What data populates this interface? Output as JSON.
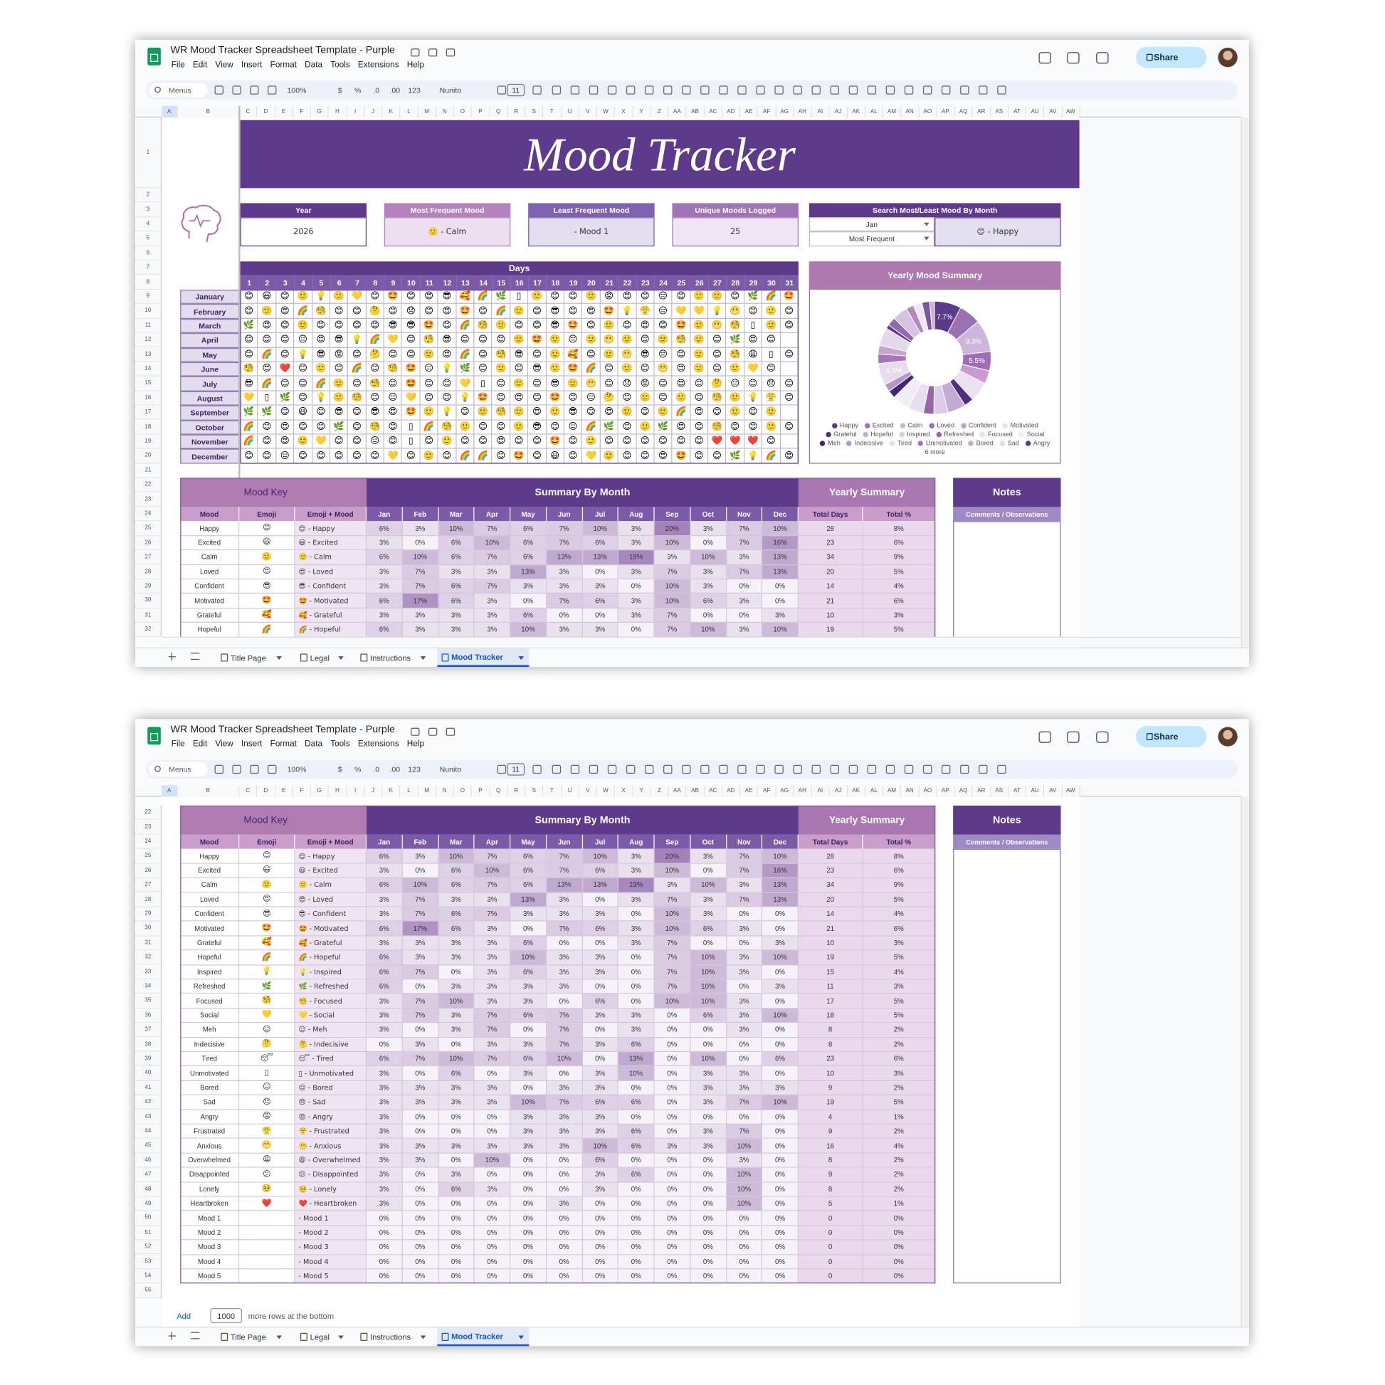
{
  "app": {
    "doc_title": "WR Mood Tracker Spreadsheet Template - Purple",
    "menus": [
      "File",
      "Edit",
      "View",
      "Insert",
      "Format",
      "Data",
      "Tools",
      "Extensions",
      "Help"
    ],
    "toolbar": {
      "search": "Menus",
      "zoom": "100%",
      "currency": "$",
      "percent": "%",
      "dec_less": ".0",
      "dec_more": ".00",
      "format": "123",
      "font": "Nunito",
      "font_size": "11"
    },
    "share": "Share",
    "columns": [
      "A",
      "B",
      "C",
      "D",
      "E",
      "F",
      "G",
      "H",
      "I",
      "J",
      "K",
      "L",
      "M",
      "N",
      "O",
      "P",
      "Q",
      "R",
      "S",
      "T",
      "U",
      "V",
      "W",
      "X",
      "Y",
      "Z",
      "AA",
      "AB",
      "AC",
      "AD",
      "AE",
      "AF",
      "AG",
      "AH",
      "AI",
      "AJ",
      "AK",
      "AL",
      "AM",
      "AN",
      "AO",
      "AP",
      "AQ",
      "AR",
      "AS",
      "AT",
      "AU",
      "AV",
      "AW"
    ],
    "row_numbers": [
      1,
      2,
      3,
      4,
      5,
      6,
      7,
      8,
      9,
      10,
      11,
      12,
      13,
      14,
      15,
      16,
      17,
      18,
      19,
      20,
      21,
      22,
      23,
      24,
      25,
      26,
      27,
      28,
      29,
      30,
      31,
      32,
      33,
      34,
      35,
      36,
      37,
      38,
      39,
      40,
      41,
      42,
      43,
      44,
      45,
      46,
      47,
      48,
      49,
      50,
      51,
      52,
      53,
      54,
      55
    ],
    "tabs": [
      "Title Page",
      "Legal",
      "Instructions",
      "Mood Tracker"
    ],
    "add_rows": {
      "button": "Add",
      "count": "1000",
      "text": "more rows at the bottom"
    }
  },
  "tracker": {
    "title": "Mood Tracker",
    "stats": [
      {
        "label": "Year",
        "value": "2026"
      },
      {
        "label": "Most Frequent Mood",
        "value": "🙂 - Calm"
      },
      {
        "label": "Least Frequent Mood",
        "value": "- Mood 1"
      },
      {
        "label": "Unique Moods Logged",
        "value": "25"
      }
    ],
    "search": {
      "label": "Search Most/Least Mood By Month",
      "month": "Jan",
      "mode": "Most Frequent",
      "result": "😊 - Happy"
    },
    "days_label": "Days",
    "days": [
      1,
      2,
      3,
      4,
      5,
      6,
      7,
      8,
      9,
      10,
      11,
      12,
      13,
      14,
      15,
      16,
      17,
      18,
      19,
      20,
      21,
      22,
      23,
      24,
      25,
      26,
      27,
      28,
      29,
      30,
      31
    ],
    "months": [
      "January",
      "February",
      "March",
      "April",
      "May",
      "June",
      "July",
      "August",
      "September",
      "October",
      "November",
      "December"
    ],
    "grid": [
      [
        "😊",
        "😃",
        "😊",
        "🙂",
        "💡",
        "🙂",
        "💛",
        "😊",
        "🤩",
        "😊",
        "😍",
        "😎",
        "🥰",
        "🌈",
        "🌿",
        "▯",
        "🙂",
        "😊",
        "😊",
        "🙂",
        "😡",
        "😍",
        "😊",
        "😑",
        "😊",
        "🙂",
        "🙂",
        "😊",
        "🌿",
        "🌈",
        "🤩"
      ],
      [
        "😊",
        "🙂",
        "😍",
        "🌈",
        "🧐",
        "😊",
        "😊",
        "🤔",
        "😊",
        "😞",
        "😊",
        "😍",
        "🤩",
        "😊",
        "🌈",
        "🙂",
        "😊",
        "😎",
        "😊",
        "😍",
        "🤩",
        "💡",
        "😤",
        "😑",
        "💛",
        "💛",
        "💡",
        "😬",
        "😊",
        "🙂",
        "😊"
      ],
      [
        "🌿",
        "😍",
        "😊",
        "🙂",
        "😊",
        "😊",
        "😊",
        "😊",
        "😎",
        "😎",
        "🤩",
        "😊",
        "🌈",
        "🧐",
        "🙂",
        "😊",
        "😊",
        "😎",
        "🤩",
        "😊",
        "🙂",
        "😊",
        "😍",
        "😊",
        "🤩",
        "🙂",
        "😬",
        "🧐",
        "▯",
        "🙂",
        "😊"
      ],
      [
        "😊",
        "😊",
        "😊",
        "😐",
        "😍",
        "😎",
        "💡",
        "🌈",
        "💛",
        "😊",
        "🧐",
        "😎",
        "😊",
        "😊",
        "😊",
        "🙂",
        "🤩",
        "🙂",
        "😑",
        "🙂",
        "😬",
        "🙂",
        "😊",
        "🙂",
        "🧐",
        "🙂",
        "😊",
        "🌿",
        "😍",
        "😊",
        null
      ],
      [
        "😊",
        "🌈",
        "😊",
        "💡",
        "😎",
        "😡",
        "😊",
        "🤔",
        "😊",
        "😊",
        "🙂",
        "😍",
        "🌈",
        "😊",
        "🧐",
        "😎",
        "😊",
        "🙂",
        "🥰",
        "😊",
        "🙂",
        "😬",
        "😎",
        "😑",
        "😊",
        "🙂",
        "😊",
        "🧐",
        "😩",
        "▯",
        "😊"
      ],
      [
        "🧐",
        "😍",
        "❤️",
        "😊",
        "🙂",
        "😊",
        "🌈",
        "😊",
        "🧐",
        "🤩",
        "😑",
        "💡",
        "🌿",
        "😊",
        "🙂",
        "😊",
        "😎",
        "🙂",
        "🤩",
        "🌈",
        "😊",
        "🙂",
        "😊",
        "😬",
        "😍",
        "🙂",
        "😊",
        "🙂",
        "💛",
        "😊",
        null
      ],
      [
        "😎",
        "🌈",
        "😊",
        "😊",
        "🌈",
        "🙂",
        "😊",
        "🧐",
        "😊",
        "🤩",
        "😊",
        "😊",
        "💛",
        "▯",
        "😊",
        "🙂",
        "😊",
        "😎",
        "🙂",
        "😬",
        "😊",
        "😞",
        "😡",
        "😊",
        "😍",
        "😊",
        "🤔",
        "😑",
        "😊",
        "😞",
        "😊"
      ],
      [
        "💛",
        "▯",
        "🌿",
        "😊",
        "💡",
        "🙂",
        "🧐",
        "😊",
        "😑",
        "💛",
        "😊",
        "😊",
        "💡",
        "🤩",
        "😊",
        "😍",
        "😊",
        "🤩",
        "😊",
        "😑",
        "🤔",
        "😊",
        "🙂",
        "😊",
        "🙂",
        "😊",
        "🧐",
        "🙂",
        "💡",
        "😤",
        "😊"
      ],
      [
        "🌿",
        "🌿",
        "😊",
        "😃",
        "😊",
        "😎",
        "😊",
        "😎",
        "😍",
        "🤩",
        "🙂",
        "💡",
        "😊",
        "🙂",
        "🧐",
        "🙂",
        "😍",
        "🙂",
        "😎",
        "😊",
        "😍",
        "🙂",
        "😊",
        "🙂",
        "🌈",
        "😍",
        "😊",
        "🙂",
        "😊",
        "🙂",
        null
      ],
      [
        "🌈",
        "😊",
        "😍",
        "😊",
        "😊",
        "🌿",
        "😊",
        "🧐",
        "😊",
        "▯",
        "🌈",
        "🧐",
        "🙂",
        "😊",
        "😊",
        "🙂",
        "😎",
        "😊",
        "😑",
        "🌈",
        "🌿",
        "😊",
        "🙂",
        "🌿",
        "😍",
        "😊",
        "🧐",
        "😊",
        "😊",
        "🙂",
        "😊"
      ],
      [
        "🌈",
        "😊",
        "😍",
        "🙂",
        "💛",
        "😊",
        "😊",
        "😑",
        "😊",
        "▯",
        "😊",
        "🙂",
        "😊",
        "😊",
        "😍",
        "😊",
        "😊",
        "🤩",
        "😊",
        "🙂",
        "😊",
        "😊",
        "😊",
        "😊",
        "😊",
        "😊",
        "❤️",
        "❤️",
        "❤️",
        "😊",
        null
      ],
      [
        "😊",
        "😊",
        "😑",
        "😊",
        "😊",
        "😊",
        "😊",
        "😊",
        "💛",
        "😊",
        "🙂",
        "😊",
        "🌈",
        "🌈",
        "😊",
        "🤩",
        "😊",
        "😃",
        "😊",
        "💛",
        "🙂",
        "😊",
        "😊",
        "😍",
        "🤩",
        "😊",
        "😊",
        "🌿",
        "💡",
        "🌈",
        "😍"
      ]
    ]
  },
  "chart_data": {
    "type": "pie",
    "title": "Yearly Mood Summary",
    "categories": [
      "Happy",
      "Excited",
      "Calm",
      "Loved",
      "Confident",
      "Motivated",
      "Grateful",
      "Hopeful",
      "Inspired",
      "Refreshed",
      "Focused",
      "Social",
      "Meh",
      "Indecisive",
      "Tired",
      "Unmotivated",
      "Bored",
      "Sad",
      "Angry",
      "Frustrated",
      "Anxious",
      "Overwhelmed",
      "Disappointed",
      "Lonely",
      "Heartbroken"
    ],
    "values": [
      7.7,
      6.3,
      9.3,
      5.5,
      3.8,
      5.7,
      2.7,
      5.2,
      4.1,
      3.0,
      4.6,
      4.9,
      2.2,
      2.2,
      6.3,
      2.7,
      2.5,
      5.2,
      1.1,
      2.5,
      4.4,
      2.2,
      2.5,
      2.2,
      1.4
    ],
    "value_labels": [
      "7.7%",
      null,
      "9.3%",
      "5.5%",
      null,
      null,
      null,
      null,
      null,
      null,
      null,
      null,
      null,
      null,
      "6.3%",
      null,
      null,
      null,
      null,
      null,
      null,
      null,
      null,
      null,
      null
    ],
    "colors": [
      "#5b3a8a",
      "#9a72b4",
      "#cdb6dc",
      "#a06cb6",
      "#c89acf",
      "#ebe1f1",
      "#4e2f80",
      "#c4aad6",
      "#ddcce8",
      "#9866a8",
      "#e9def0",
      "#f2ecf6",
      "#432672",
      "#b595cb",
      "#e6dced",
      "#a775ba",
      "#c6a5cf",
      "#e4d8eb",
      "#5a3a8a",
      "#8f6bb0",
      "#d6c2e2",
      "#b089c2",
      "#efe6f3",
      "#7a55a0",
      "#cbb2d9"
    ],
    "legend_more": "6 more"
  },
  "mood_key": {
    "title": "Mood Key",
    "summary_title": "Summary By Month",
    "yearly_title": "Yearly Summary",
    "notes_title": "Notes",
    "notes_sub": "Comments / Observations",
    "headers": [
      "Mood",
      "Emoji",
      "Emoji + Mood",
      "Jan",
      "Feb",
      "Mar",
      "Apr",
      "May",
      "Jun",
      "Jul",
      "Aug",
      "Sep",
      "Oct",
      "Nov",
      "Dec",
      "Total Days",
      "Total %"
    ],
    "rows": [
      [
        "Happy",
        "😊",
        "😊 - Happy",
        "6%",
        "3%",
        "10%",
        "7%",
        "6%",
        "7%",
        "10%",
        "3%",
        "20%",
        "3%",
        "7%",
        "10%",
        28,
        "8%"
      ],
      [
        "Excited",
        "😃",
        "😃 - Excited",
        "3%",
        "0%",
        "6%",
        "10%",
        "6%",
        "7%",
        "6%",
        "3%",
        "10%",
        "0%",
        "7%",
        "16%",
        23,
        "6%"
      ],
      [
        "Calm",
        "🙂",
        "🙂 - Calm",
        "6%",
        "10%",
        "6%",
        "7%",
        "6%",
        "13%",
        "13%",
        "19%",
        "3%",
        "10%",
        "3%",
        "13%",
        34,
        "9%"
      ],
      [
        "Loved",
        "😍",
        "😍 - Loved",
        "3%",
        "7%",
        "3%",
        "3%",
        "13%",
        "3%",
        "0%",
        "3%",
        "7%",
        "3%",
        "7%",
        "13%",
        20,
        "5%"
      ],
      [
        "Confident",
        "😎",
        "😎 - Confident",
        "3%",
        "7%",
        "6%",
        "7%",
        "3%",
        "3%",
        "3%",
        "0%",
        "10%",
        "3%",
        "0%",
        "0%",
        14,
        "4%"
      ],
      [
        "Motivated",
        "🤩",
        "🤩 - Motivated",
        "6%",
        "17%",
        "6%",
        "3%",
        "0%",
        "7%",
        "6%",
        "3%",
        "10%",
        "6%",
        "3%",
        "0%",
        21,
        "6%"
      ],
      [
        "Grateful",
        "🥰",
        "🥰 - Grateful",
        "3%",
        "3%",
        "3%",
        "3%",
        "6%",
        "0%",
        "0%",
        "3%",
        "7%",
        "0%",
        "0%",
        "3%",
        10,
        "3%"
      ],
      [
        "Hopeful",
        "🌈",
        "🌈 - Hopeful",
        "6%",
        "3%",
        "3%",
        "3%",
        "10%",
        "3%",
        "3%",
        "0%",
        "7%",
        "10%",
        "3%",
        "10%",
        19,
        "5%"
      ],
      [
        "Inspired",
        "💡",
        "💡 - Inspired",
        "6%",
        "7%",
        "0%",
        "3%",
        "6%",
        "3%",
        "3%",
        "0%",
        "7%",
        "10%",
        "3%",
        "0%",
        15,
        "4%"
      ],
      [
        "Refreshed",
        "🌿",
        "🌿 - Refreshed",
        "6%",
        "0%",
        "3%",
        "3%",
        "3%",
        "3%",
        "0%",
        "0%",
        "7%",
        "10%",
        "0%",
        "3%",
        11,
        "3%"
      ],
      [
        "Focused",
        "🧐",
        "🧐 - Focused",
        "3%",
        "7%",
        "10%",
        "3%",
        "3%",
        "0%",
        "6%",
        "0%",
        "10%",
        "10%",
        "3%",
        "0%",
        17,
        "5%"
      ],
      [
        "Social",
        "💛",
        "💛 - Social",
        "3%",
        "7%",
        "3%",
        "7%",
        "6%",
        "7%",
        "3%",
        "3%",
        "0%",
        "6%",
        "3%",
        "10%",
        18,
        "5%"
      ],
      [
        "Meh",
        "😐",
        "😐 - Meh",
        "3%",
        "0%",
        "3%",
        "7%",
        "0%",
        "7%",
        "0%",
        "3%",
        "0%",
        "0%",
        "3%",
        "0%",
        8,
        "2%"
      ],
      [
        "Indecisive",
        "🤔",
        "🤔 - Indecisive",
        "0%",
        "3%",
        "0%",
        "3%",
        "3%",
        "7%",
        "3%",
        "6%",
        "0%",
        "0%",
        "0%",
        "0%",
        8,
        "2%"
      ],
      [
        "Tired",
        "😴",
        "😴 - Tired",
        "6%",
        "7%",
        "10%",
        "7%",
        "6%",
        "10%",
        "0%",
        "13%",
        "0%",
        "10%",
        "0%",
        "6%",
        23,
        "6%"
      ],
      [
        "Unmotivated",
        "▯",
        "▯ - Unmotivated",
        "3%",
        "0%",
        "6%",
        "0%",
        "3%",
        "0%",
        "3%",
        "10%",
        "0%",
        "3%",
        "3%",
        "0%",
        10,
        "3%"
      ],
      [
        "Bored",
        "😑",
        "😑 - Bored",
        "3%",
        "3%",
        "3%",
        "3%",
        "0%",
        "3%",
        "3%",
        "0%",
        "0%",
        "3%",
        "3%",
        "3%",
        9,
        "2%"
      ],
      [
        "Sad",
        "😞",
        "😞 - Sad",
        "3%",
        "3%",
        "3%",
        "3%",
        "10%",
        "7%",
        "6%",
        "6%",
        "0%",
        "3%",
        "7%",
        "10%",
        19,
        "5%"
      ],
      [
        "Angry",
        "😡",
        "😡 - Angry",
        "3%",
        "0%",
        "0%",
        "0%",
        "3%",
        "3%",
        "3%",
        "0%",
        "0%",
        "0%",
        "0%",
        "0%",
        4,
        "1%"
      ],
      [
        "Frustrated",
        "😤",
        "😤 - Frustrated",
        "3%",
        "0%",
        "0%",
        "0%",
        "3%",
        "3%",
        "3%",
        "6%",
        "0%",
        "3%",
        "7%",
        "0%",
        9,
        "2%"
      ],
      [
        "Anxious",
        "😬",
        "😬 - Anxious",
        "3%",
        "3%",
        "3%",
        "3%",
        "3%",
        "3%",
        "10%",
        "6%",
        "3%",
        "3%",
        "10%",
        "0%",
        16,
        "4%"
      ],
      [
        "Overwhelmed",
        "😩",
        "😩 - Overwhelmed",
        "3%",
        "3%",
        "0%",
        "10%",
        "0%",
        "0%",
        "6%",
        "0%",
        "0%",
        "0%",
        "3%",
        "0%",
        8,
        "2%"
      ],
      [
        "Disappointed",
        "😕",
        "😕 - Disappointed",
        "3%",
        "0%",
        "3%",
        "0%",
        "0%",
        "0%",
        "3%",
        "6%",
        "0%",
        "0%",
        "10%",
        "0%",
        9,
        "2%"
      ],
      [
        "Lonely",
        "🥺",
        "🥺 - Lonely",
        "3%",
        "0%",
        "6%",
        "3%",
        "0%",
        "0%",
        "3%",
        "0%",
        "0%",
        "0%",
        "10%",
        "0%",
        8,
        "2%"
      ],
      [
        "Heartbroken",
        "❤️",
        "❤️ - Heartbroken",
        "3%",
        "0%",
        "0%",
        "0%",
        "0%",
        "3%",
        "0%",
        "0%",
        "0%",
        "0%",
        "10%",
        "0%",
        5,
        "1%"
      ],
      [
        "Mood 1",
        null,
        "- Mood 1",
        "0%",
        "0%",
        "0%",
        "0%",
        "0%",
        "0%",
        "0%",
        "0%",
        "0%",
        "0%",
        "0%",
        "0%",
        0,
        "0%"
      ],
      [
        "Mood 2",
        null,
        "- Mood 2",
        "0%",
        "0%",
        "0%",
        "0%",
        "0%",
        "0%",
        "0%",
        "0%",
        "0%",
        "0%",
        "0%",
        "0%",
        0,
        "0%"
      ],
      [
        "Mood 3",
        null,
        "- Mood 3",
        "0%",
        "0%",
        "0%",
        "0%",
        "0%",
        "0%",
        "0%",
        "0%",
        "0%",
        "0%",
        "0%",
        "0%",
        0,
        "0%"
      ],
      [
        "Mood 4",
        null,
        "- Mood 4",
        "0%",
        "0%",
        "0%",
        "0%",
        "0%",
        "0%",
        "0%",
        "0%",
        "0%",
        "0%",
        "0%",
        "0%",
        0,
        "0%"
      ],
      [
        "Mood 5",
        null,
        "- Mood 5",
        "0%",
        "0%",
        "0%",
        "0%",
        "0%",
        "0%",
        "0%",
        "0%",
        "0%",
        "0%",
        "0%",
        "0%",
        0,
        "0%"
      ]
    ]
  }
}
